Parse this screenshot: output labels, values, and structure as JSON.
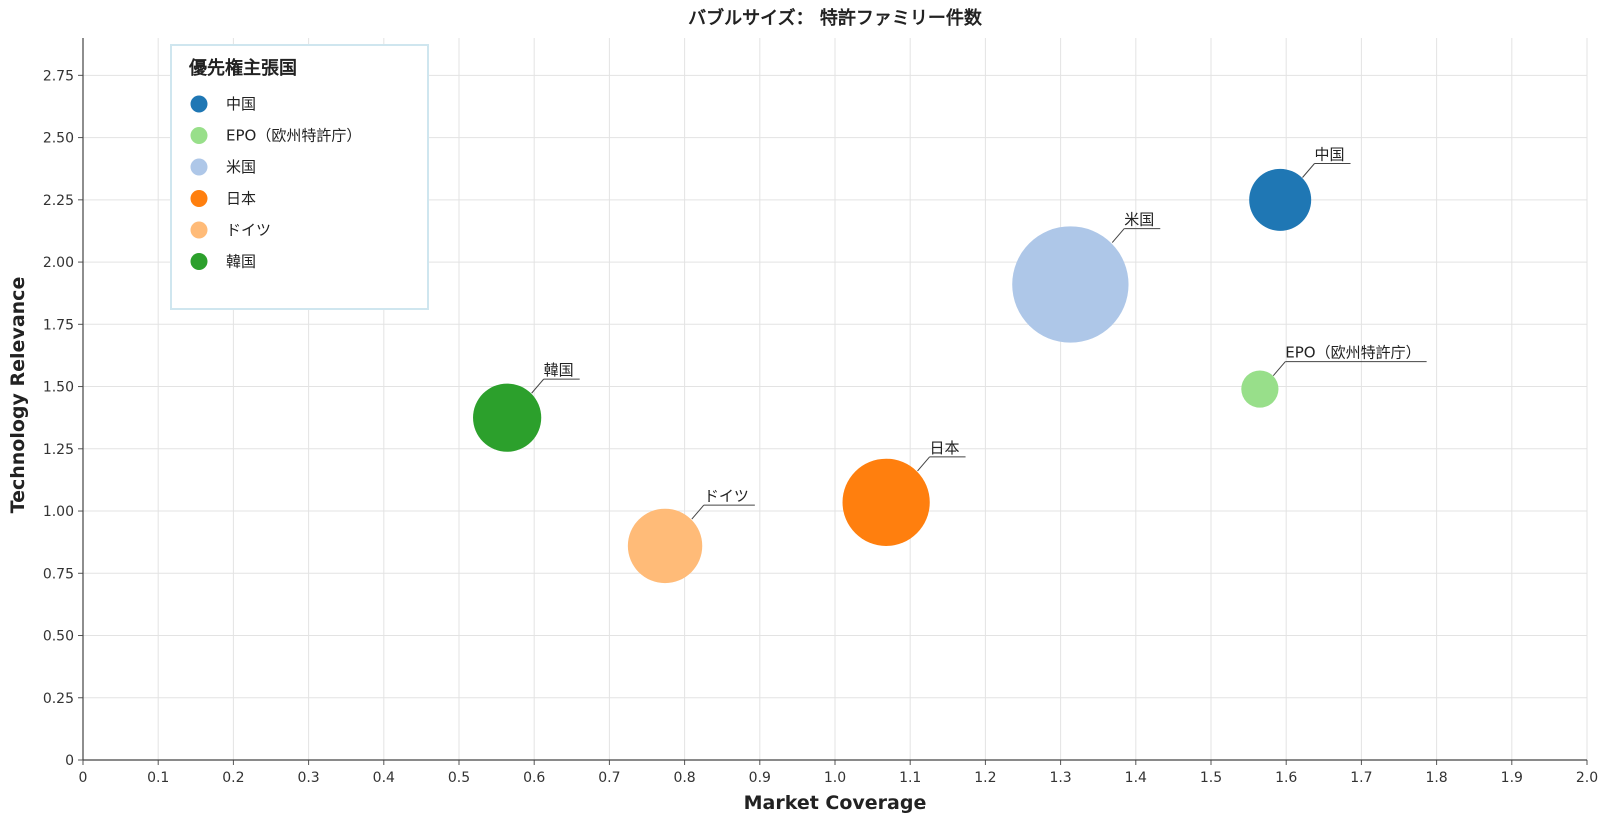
{
  "chart_data": {
    "type": "scatter",
    "title": "バブルサイズ： 特許ファミリー件数",
    "xlabel": "Market Coverage",
    "ylabel": "Technology Relevance",
    "xlim": [
      0,
      2.0
    ],
    "ylim": [
      0,
      2.9
    ],
    "xticks": [
      0,
      0.1,
      0.2,
      0.3,
      0.4,
      0.5,
      0.6,
      0.7,
      0.8,
      0.9,
      1.0,
      1.1,
      1.2,
      1.3,
      1.4,
      1.5,
      1.6,
      1.7,
      1.8,
      1.9,
      2.0
    ],
    "xtick_labels": [
      "0",
      "0.1",
      "0.2",
      "0.3",
      "0.4",
      "0.5",
      "0.6",
      "0.7",
      "0.8",
      "0.9",
      "1.0",
      "1.1",
      "1.2",
      "1.3",
      "1.4",
      "1.5",
      "1.6",
      "1.7",
      "1.8",
      "1.9",
      "2.0"
    ],
    "yticks": [
      0,
      0.25,
      0.5,
      0.75,
      1.0,
      1.25,
      1.5,
      1.75,
      2.0,
      2.25,
      2.5,
      2.75
    ],
    "ytick_labels": [
      "0",
      "0.25",
      "0.50",
      "0.75",
      "1.00",
      "1.25",
      "1.50",
      "1.75",
      "2.00",
      "2.25",
      "2.50",
      "2.75"
    ],
    "grid": true,
    "legend": {
      "title": "優先権主張国",
      "position": "top-left"
    },
    "series": [
      {
        "name": "中国",
        "x": 1.592,
        "y": 2.25,
        "size": 1.0,
        "color": "#1f77b4"
      },
      {
        "name": "EPO（欧州特許庁）",
        "x": 1.565,
        "y": 1.49,
        "size": 0.36,
        "color": "#98df8a"
      },
      {
        "name": "米国",
        "x": 1.313,
        "y": 1.91,
        "size": 3.52,
        "color": "#aec7e8"
      },
      {
        "name": "日本",
        "x": 1.068,
        "y": 1.035,
        "size": 1.98,
        "color": "#ff7f0e"
      },
      {
        "name": "ドイツ",
        "x": 0.774,
        "y": 0.86,
        "size": 1.44,
        "color": "#ffbb78"
      },
      {
        "name": "韓国",
        "x": 0.564,
        "y": 1.375,
        "size": 1.21,
        "color": "#2ca02c"
      }
    ]
  }
}
